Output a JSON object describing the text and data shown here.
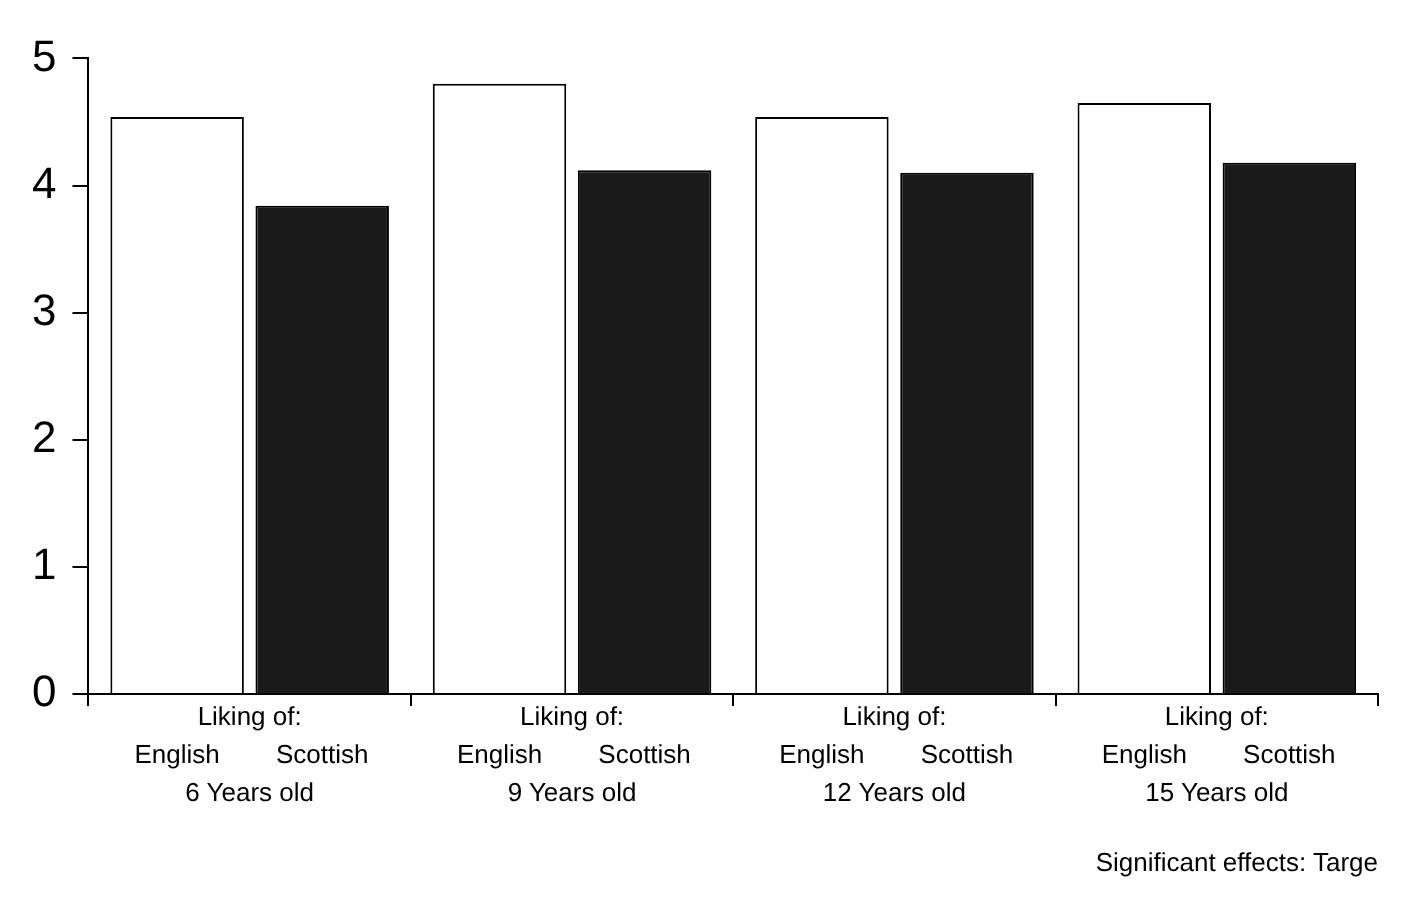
{
  "chart_data": {
    "type": "bar",
    "categories": [
      "6 Years old",
      "9 Years old",
      "12 Years old",
      "15 Years old"
    ],
    "series": [
      {
        "name": "English",
        "color": "#ffffff",
        "values": [
          4.54,
          4.8,
          4.54,
          4.65
        ]
      },
      {
        "name": "Scottish",
        "color": "#1a1a1a",
        "values": [
          3.84,
          4.12,
          4.1,
          4.18
        ]
      }
    ],
    "ylim": [
      0,
      5
    ],
    "yticks": [
      0,
      1,
      2,
      3,
      4,
      5
    ],
    "grid": false,
    "legend": false,
    "annotations": [
      "Liking of:",
      "Significant effects: Targe"
    ]
  }
}
